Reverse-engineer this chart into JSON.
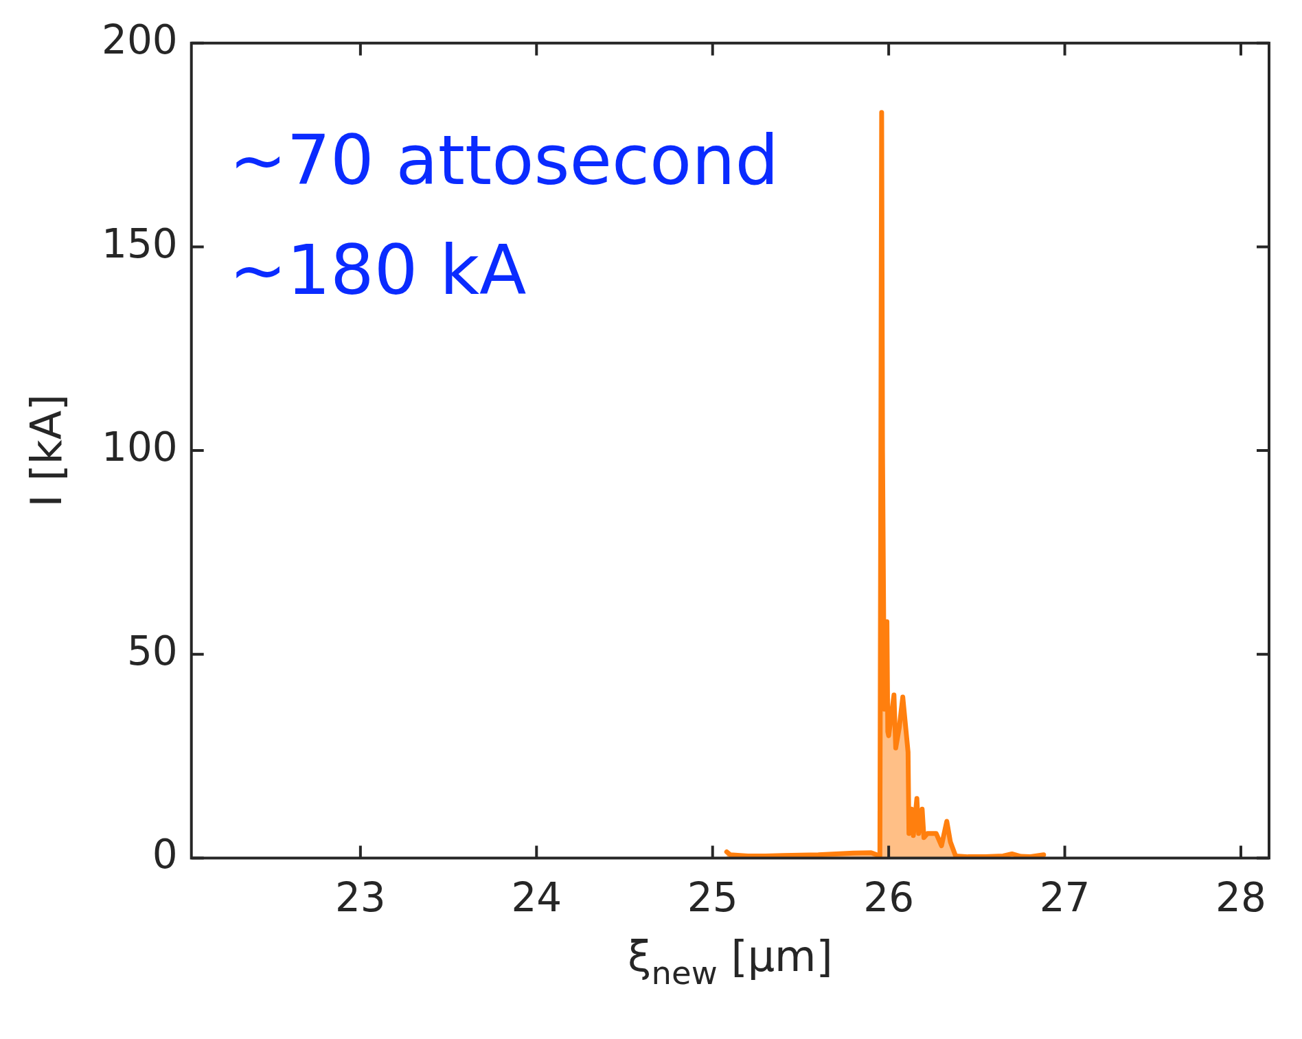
{
  "chart_data": {
    "type": "area",
    "xlabel": "ξ$_{new}$ [μm]",
    "ylabel": "I [kA]",
    "annotations": [
      "~70 attosecond",
      "~180 kA"
    ],
    "xlim": [
      22.04,
      28.16
    ],
    "xticks": [
      23,
      24,
      25,
      26,
      27,
      28
    ],
    "ylim": [
      0,
      200
    ],
    "yticks": [
      0,
      50,
      100,
      150,
      200
    ],
    "grid": false,
    "legend": false,
    "series": [
      {
        "color": "#ff7f0e",
        "x": [
          25.08,
          25.1,
          25.2,
          25.3,
          25.4,
          25.5,
          25.6,
          25.7,
          25.8,
          25.9,
          25.95,
          25.96,
          25.965,
          25.975,
          25.99,
          25.995,
          26.0,
          26.03,
          26.04,
          26.06,
          26.08,
          26.11,
          26.115,
          26.13,
          26.14,
          26.16,
          26.17,
          26.19,
          26.2,
          26.22,
          26.27,
          26.3,
          26.33,
          26.35,
          26.38,
          26.45,
          26.55,
          26.65,
          26.7,
          26.75,
          26.8,
          26.88
        ],
        "values": [
          1.5,
          0.8,
          0.5,
          0.5,
          0.6,
          0.7,
          0.8,
          1,
          1.2,
          1.3,
          0.5,
          183,
          100,
          36.5,
          58,
          31,
          30,
          40,
          27,
          32,
          39.5,
          26,
          6,
          12,
          5.5,
          14.6,
          6,
          12,
          5,
          6,
          6,
          3,
          9,
          4,
          0.5,
          0.3,
          0.3,
          0.5,
          1,
          0.4,
          0.3,
          0.8
        ]
      }
    ]
  }
}
